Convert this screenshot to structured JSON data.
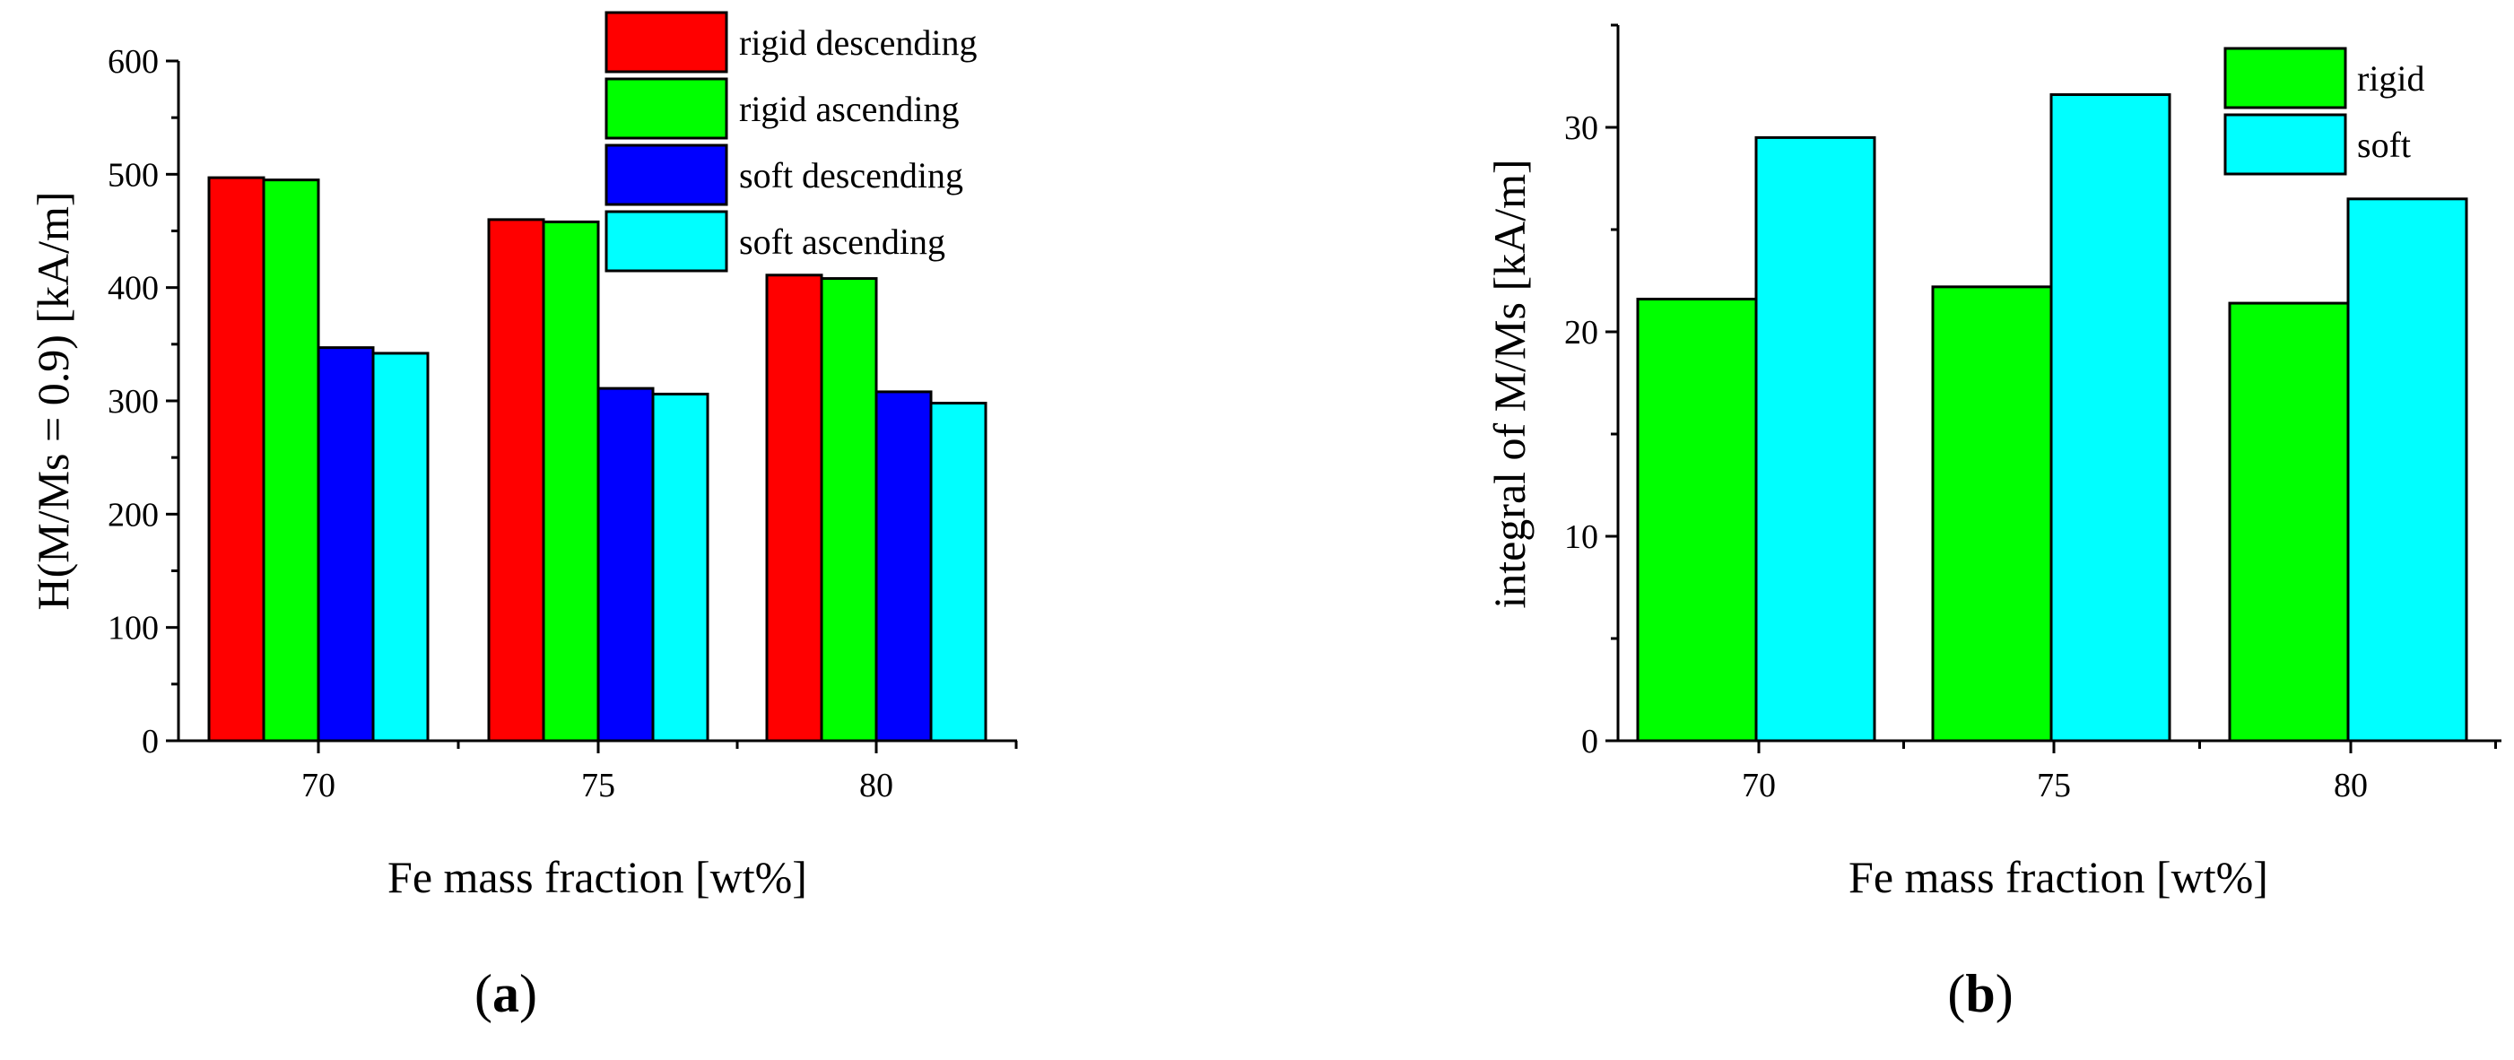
{
  "chart_data": [
    {
      "id": "a",
      "type": "bar",
      "panel_label": "(a)",
      "panel_letter": "a",
      "xlabel": "Fe mass fraction [wt%]",
      "ylabel": "H(M/Ms = 0.9) [kA/m]",
      "categories": [
        "70",
        "75",
        "80"
      ],
      "ylim": [
        0,
        600
      ],
      "yticks": [
        0,
        100,
        200,
        300,
        400,
        500,
        600
      ],
      "legend_position": "top-right",
      "series": [
        {
          "name": "rigid descending",
          "color": "#ff0000",
          "values": [
            497,
            460,
            411
          ]
        },
        {
          "name": "rigid ascending",
          "color": "#00ff00",
          "values": [
            495,
            458,
            408
          ]
        },
        {
          "name": "soft descending",
          "color": "#0000ff",
          "values": [
            347,
            311,
            308
          ]
        },
        {
          "name": "soft ascending",
          "color": "#00ffff",
          "values": [
            342,
            306,
            298
          ]
        }
      ]
    },
    {
      "id": "b",
      "type": "bar",
      "panel_label": "(b)",
      "panel_letter": "b",
      "xlabel": "Fe mass fraction [wt%]",
      "ylabel": "integral of M/Ms [kA/m]",
      "categories": [
        "70",
        "75",
        "80"
      ],
      "ylim": [
        0,
        35
      ],
      "yticks": [
        0,
        10,
        20,
        30
      ],
      "legend_position": "top-right",
      "series": [
        {
          "name": "rigid",
          "color": "#00ff00",
          "values": [
            21.6,
            22.2,
            21.4
          ]
        },
        {
          "name": "soft",
          "color": "#00ffff",
          "values": [
            29.5,
            31.6,
            26.5
          ]
        }
      ]
    }
  ]
}
